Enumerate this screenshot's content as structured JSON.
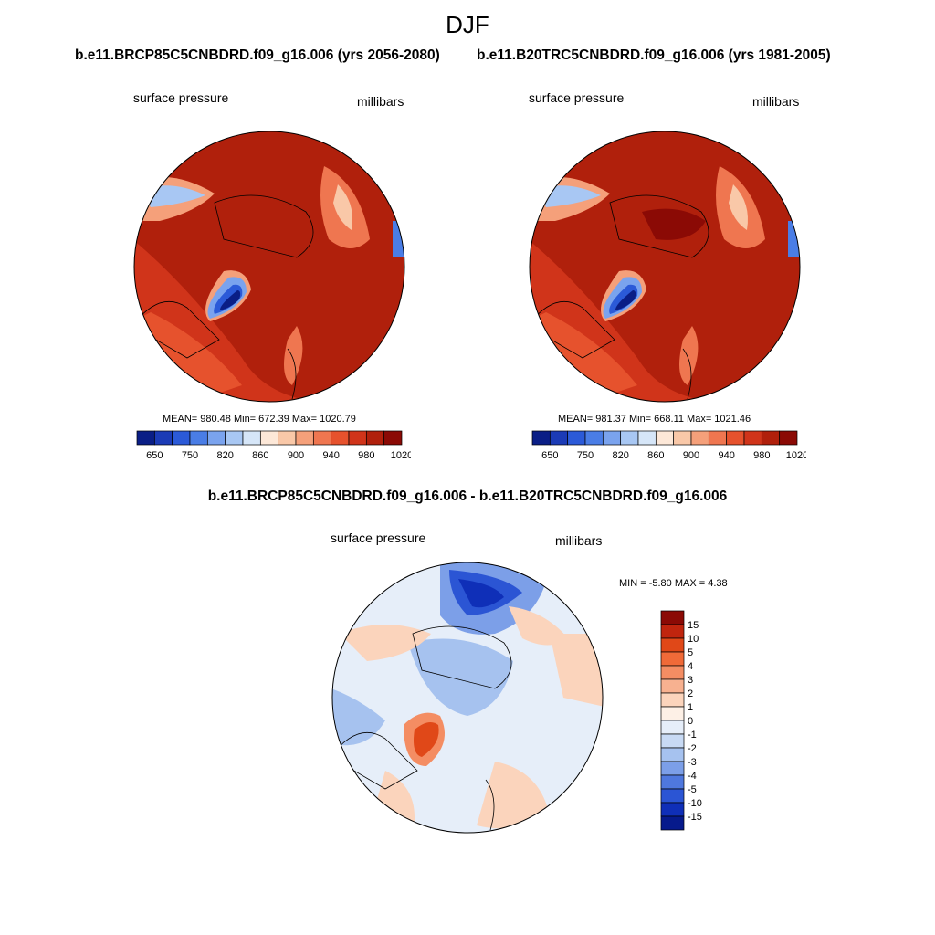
{
  "title": "DJF",
  "diff_title": "b.e11.BRCP85C5CNBDRD.f09_g16.006 - b.e11.B20TRC5CNBDRD.f09_g16.006",
  "panels": [
    {
      "case": "b.e11.BRCP85C5CNBDRD.f09_g16.006 (yrs 2056-2080)",
      "left_label": "surface pressure",
      "right_label": "millibars",
      "stats": "MEAN= 980.48  Min= 672.39  Max= 1020.79"
    },
    {
      "case": "b.e11.B20TRC5CNBDRD.f09_g16.006 (yrs 1981-2005)",
      "left_label": "surface pressure",
      "right_label": "millibars",
      "stats": "MEAN= 981.37  Min= 668.11  Max= 1021.46"
    },
    {
      "left_label": "surface pressure",
      "right_label": "millibars",
      "stats": "MIN =  -5.80 MAX =   4.38"
    }
  ],
  "abs_colorbar": {
    "colors": [
      "#0a1e86",
      "#1b3bb6",
      "#2b5ad8",
      "#4a7de6",
      "#7aa3ee",
      "#a8c7f3",
      "#d6e6f8",
      "#fde8d8",
      "#f9c8a8",
      "#f5a07a",
      "#ef7650",
      "#e6522d",
      "#d0341a",
      "#b0200c",
      "#8b0a05"
    ],
    "labels": [
      "650",
      "750",
      "820",
      "860",
      "900",
      "940",
      "980",
      "1020"
    ]
  },
  "diff_colorbar": {
    "colors": [
      "#8b0a05",
      "#c0250e",
      "#e04818",
      "#f06a38",
      "#f48d63",
      "#f7b190",
      "#fbd4bc",
      "#fdf0e6",
      "#e6eef9",
      "#c8daf4",
      "#a6c2ef",
      "#7c9fe8",
      "#4f78de",
      "#2b55d4",
      "#0f2fb8",
      "#061a8c"
    ],
    "labels": [
      "15",
      "10",
      "5",
      "4",
      "3",
      "2",
      "1",
      "0",
      "-1",
      "-2",
      "-3",
      "-4",
      "-5",
      "-10",
      "-15"
    ]
  }
}
